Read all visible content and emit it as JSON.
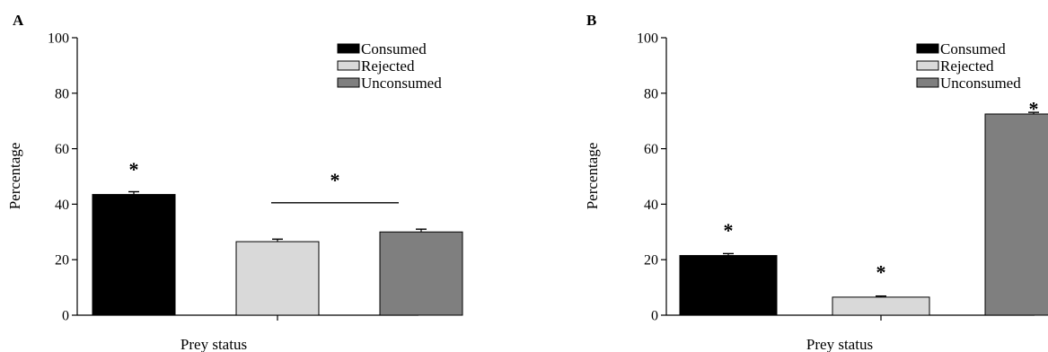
{
  "chart_data": [
    {
      "type": "bar",
      "panel_label": "A",
      "categories": [
        "Consumed",
        "Rejected",
        "Unconsumed"
      ],
      "values": [
        43.5,
        26.5,
        30
      ],
      "errors": [
        1.0,
        0.9,
        1.0
      ],
      "colors": [
        "#000000",
        "#d9d9d9",
        "#7f7f7f"
      ],
      "xlabel": "Prey status",
      "ylabel": "Percentage",
      "ylim": [
        0,
        100
      ],
      "yticks": [
        0,
        20,
        40,
        60,
        80,
        100
      ],
      "legend": {
        "position": "top-right",
        "entries": [
          "Consumed",
          "Rejected",
          "Unconsumed"
        ]
      },
      "annotations": [
        {
          "text": "*",
          "type": "bar",
          "category": "Consumed",
          "y": 53
        },
        {
          "text": "*",
          "type": "bracket",
          "from": "Rejected",
          "to": "Unconsumed",
          "y": 40.5
        }
      ]
    },
    {
      "type": "bar",
      "panel_label": "B",
      "categories": [
        "Consumed",
        "Rejected",
        "Unconsumed"
      ],
      "values": [
        21.5,
        6.5,
        72.5
      ],
      "errors": [
        0.7,
        0.4,
        0.6
      ],
      "colors": [
        "#000000",
        "#d9d9d9",
        "#7f7f7f"
      ],
      "xlabel": "Prey status",
      "ylabel": "Percentage",
      "ylim": [
        0,
        100
      ],
      "yticks": [
        0,
        20,
        40,
        60,
        80,
        100
      ],
      "legend": {
        "position": "top-right",
        "entries": [
          "Consumed",
          "Rejected",
          "Unconsumed"
        ]
      },
      "annotations": [
        {
          "text": "*",
          "type": "bar",
          "category": "Consumed",
          "y": 31
        },
        {
          "text": "*",
          "type": "bar",
          "category": "Rejected",
          "y": 16
        },
        {
          "text": "*",
          "type": "bar",
          "category": "Unconsumed",
          "y": 75
        }
      ]
    }
  ]
}
